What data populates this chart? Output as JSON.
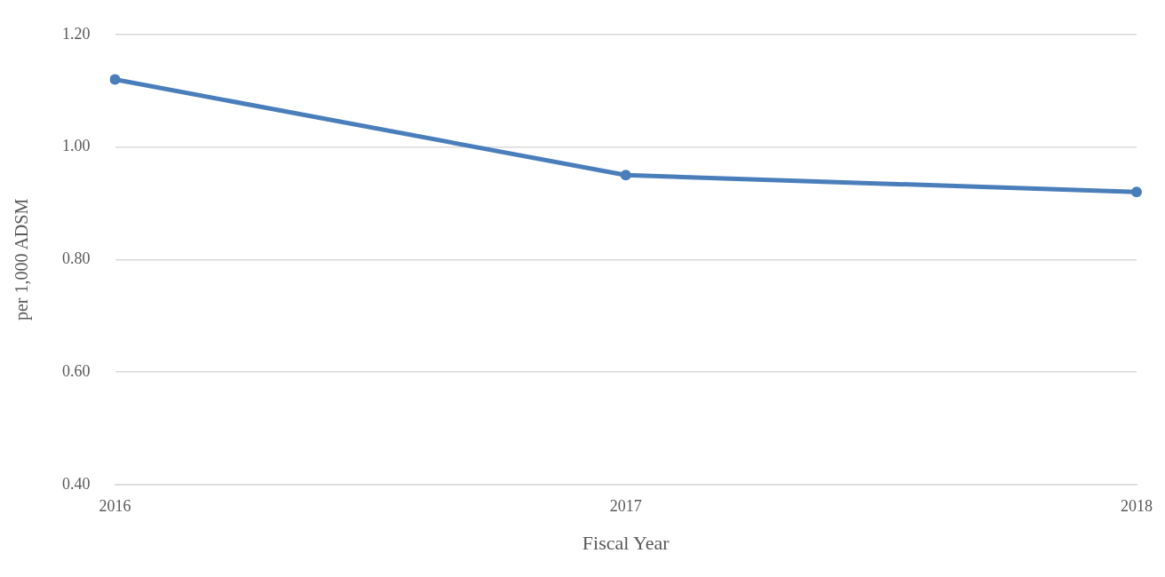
{
  "chart_data": {
    "type": "line",
    "xlabel": "Fiscal Year",
    "ylabel": "per 1,000 ADSM",
    "categories": [
      "2016",
      "2017",
      "2018"
    ],
    "series": [
      {
        "color": "#4a7ebb",
        "values": [
          1.12,
          0.95,
          0.92
        ]
      }
    ],
    "ylim": [
      0.4,
      1.2
    ],
    "yticks": [
      {
        "value": 0.4,
        "label": "0.40"
      },
      {
        "value": 0.6,
        "label": "0.60"
      },
      {
        "value": 0.8,
        "label": "0.80"
      },
      {
        "value": 1.0,
        "label": "1.00"
      },
      {
        "value": 1.2,
        "label": "1.20"
      }
    ],
    "grid": "y",
    "legend": false,
    "marker": "circle",
    "line_style": "solid"
  }
}
